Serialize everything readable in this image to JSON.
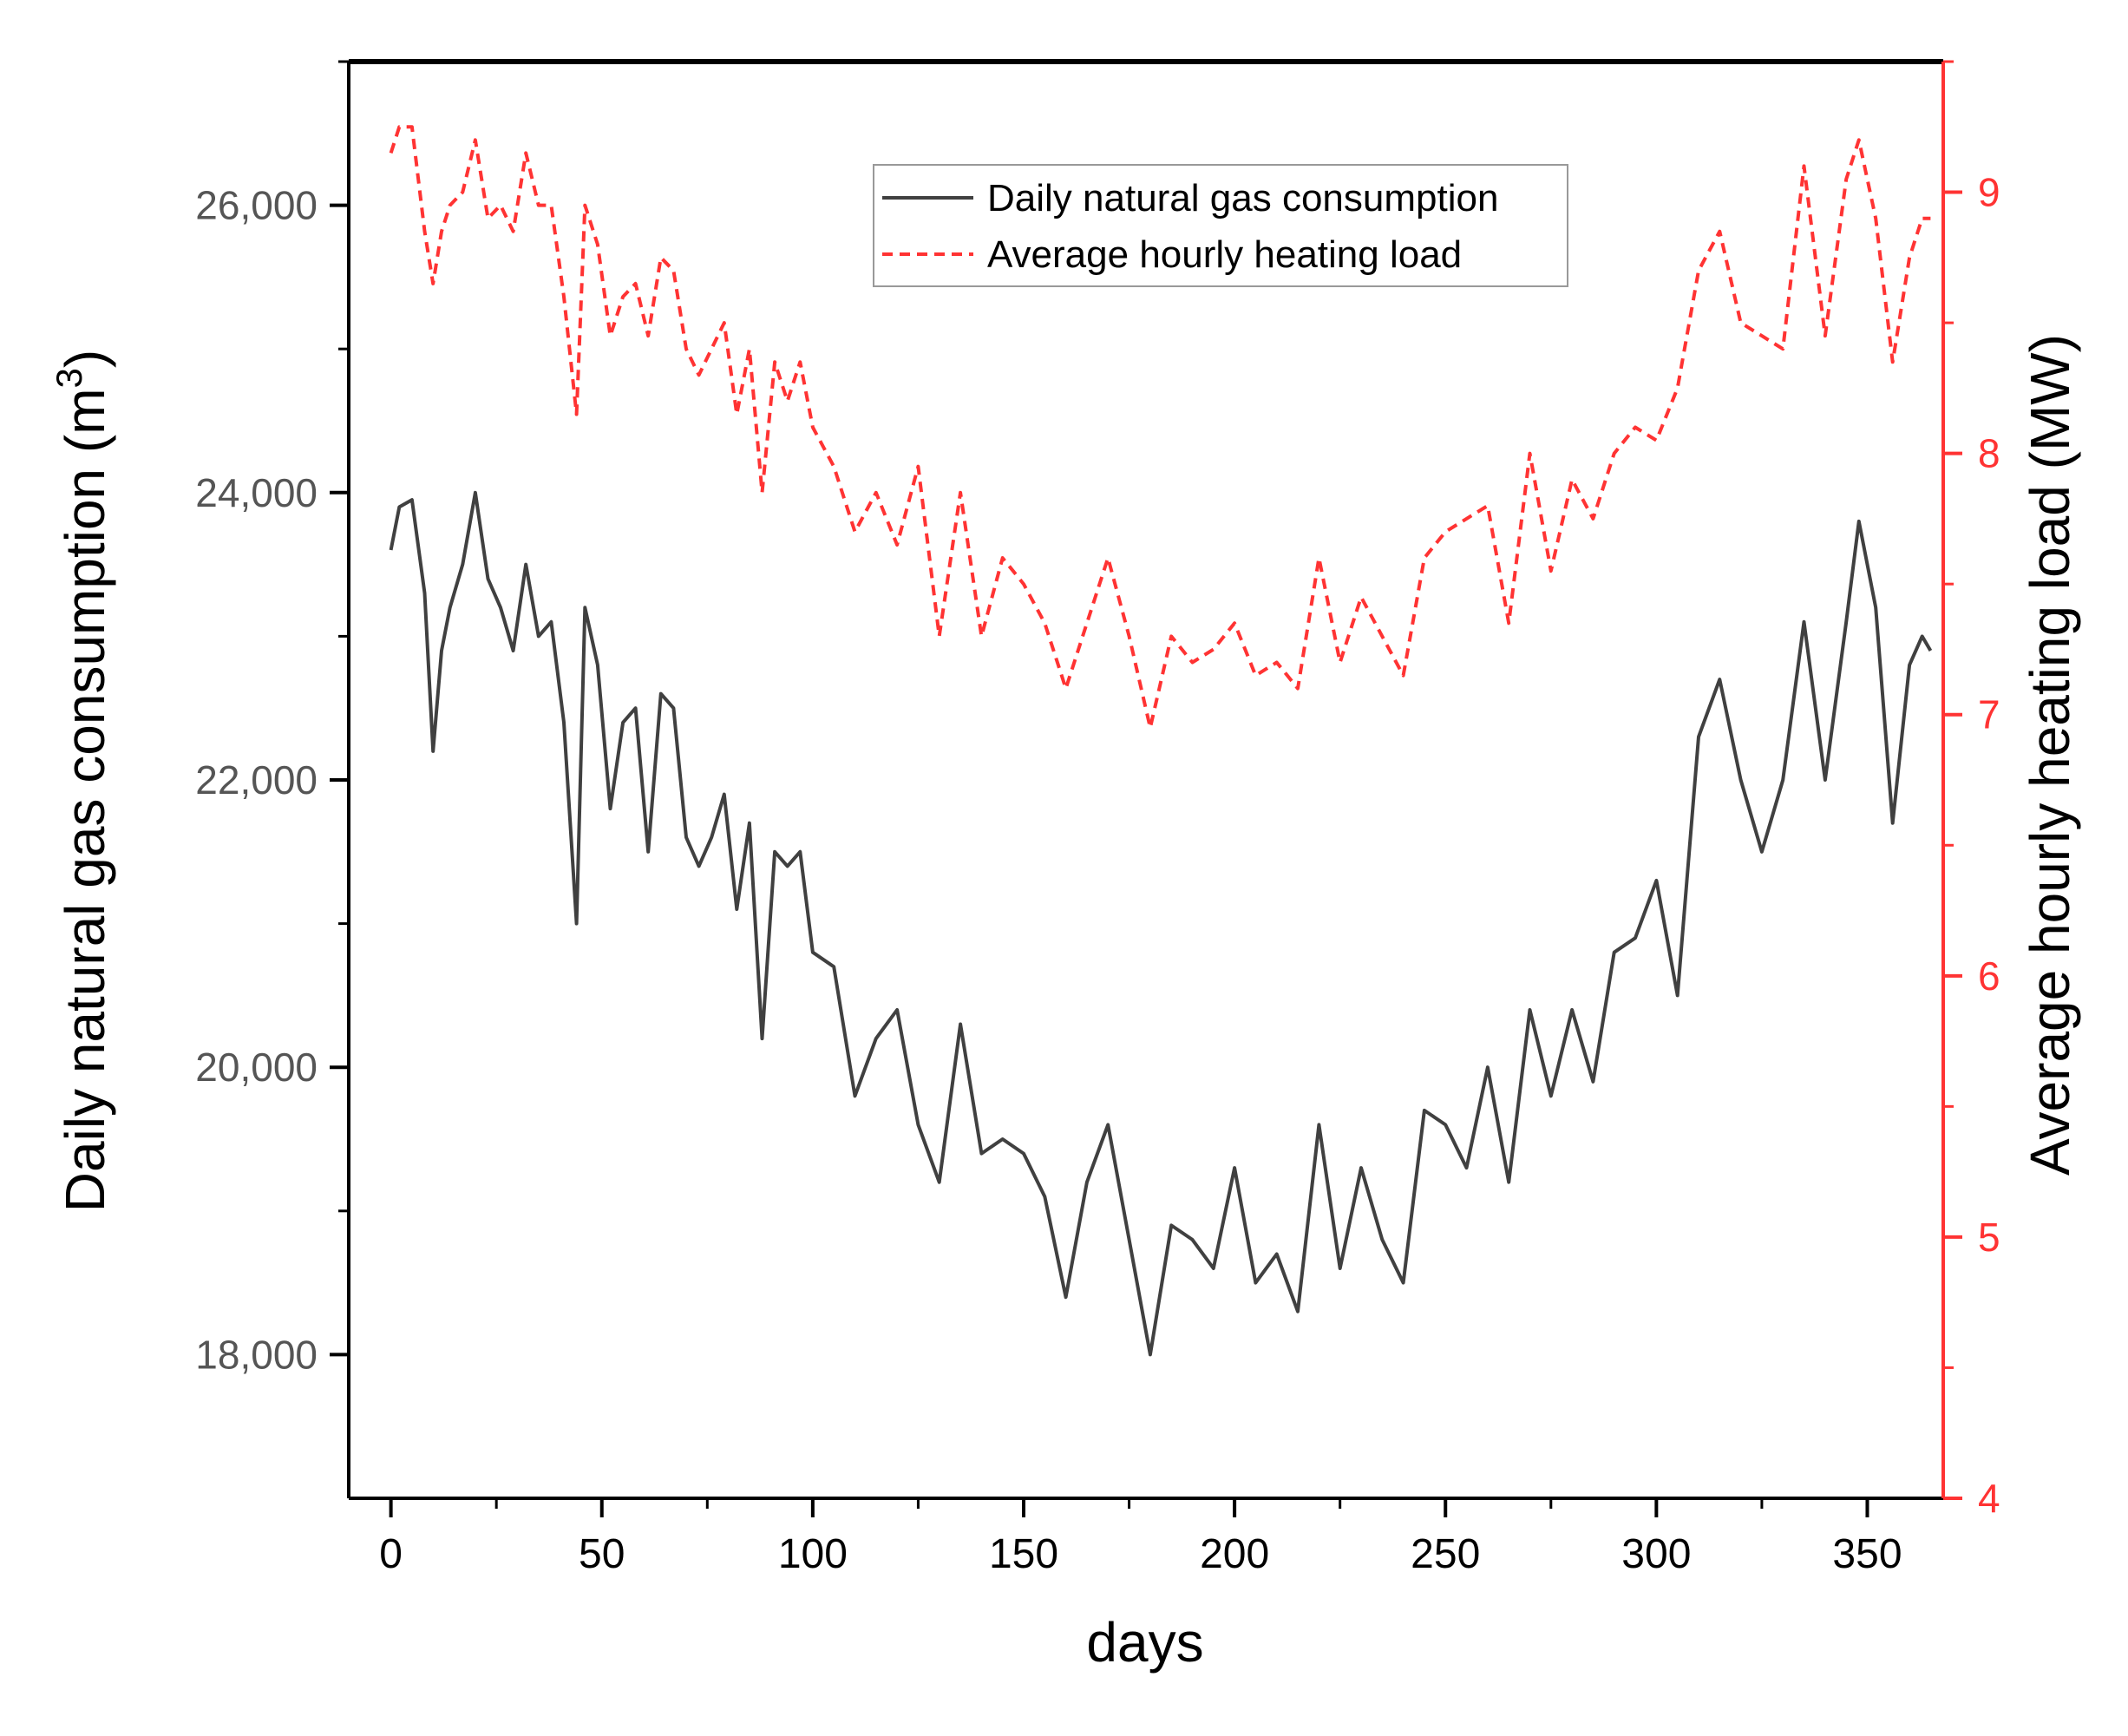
{
  "chart_data": {
    "type": "line",
    "title": "",
    "xlabel": "days",
    "ylabel_left": "Daily natural gas consumption (m3)",
    "ylabel_left_main": "Daily natural gas consumption (m",
    "ylabel_left_sup": "3",
    "ylabel_left_end": ")",
    "ylabel_right": "Average hourly heating load (MW)",
    "xlim": [
      -10,
      368
    ],
    "ylim_left": [
      17000,
      27000
    ],
    "ylim_right": [
      4,
      9.5
    ],
    "x_ticks": [
      0,
      50,
      100,
      150,
      200,
      250,
      300,
      350
    ],
    "x_tick_labels": [
      "0",
      "50",
      "100",
      "150",
      "200",
      "250",
      "300",
      "350"
    ],
    "y_left_ticks": [
      18000,
      20000,
      22000,
      24000,
      26000
    ],
    "y_left_tick_labels": [
      "18,000",
      "20,000",
      "22,000",
      "24,000",
      "26,000"
    ],
    "y_right_ticks": [
      4,
      5,
      6,
      7,
      8,
      9
    ],
    "y_right_tick_labels": [
      "4",
      "5",
      "6",
      "7",
      "8",
      "9"
    ],
    "legend_position": "top-right",
    "colors": {
      "gas": "#404040",
      "heat": "#ff3333",
      "right_axis": "#ff3333"
    },
    "series": [
      {
        "name": "Daily natural gas consumption",
        "axis": "left",
        "style": "solid",
        "x": [
          0,
          2,
          5,
          8,
          10,
          12,
          14,
          17,
          20,
          23,
          26,
          29,
          32,
          35,
          38,
          41,
          44,
          46,
          49,
          52,
          55,
          58,
          61,
          64,
          67,
          70,
          73,
          76,
          79,
          82,
          85,
          88,
          91,
          94,
          97,
          100,
          105,
          110,
          115,
          120,
          125,
          130,
          135,
          140,
          145,
          150,
          155,
          160,
          165,
          170,
          175,
          180,
          185,
          190,
          195,
          200,
          205,
          210,
          215,
          220,
          225,
          230,
          235,
          240,
          245,
          250,
          255,
          260,
          265,
          270,
          275,
          280,
          285,
          290,
          295,
          300,
          305,
          310,
          315,
          320,
          325,
          330,
          335,
          340,
          345,
          348,
          352,
          356,
          360,
          363,
          365
        ],
        "values": [
          23600,
          23900,
          23950,
          23300,
          22200,
          22900,
          23200,
          23500,
          24000,
          23400,
          23200,
          22900,
          23500,
          23000,
          23100,
          22400,
          21000,
          23200,
          22800,
          21800,
          22400,
          22500,
          21500,
          22600,
          22500,
          21600,
          21400,
          21600,
          21900,
          21100,
          21700,
          20200,
          21500,
          21400,
          21500,
          20800,
          20700,
          19800,
          20200,
          20400,
          19600,
          19200,
          20300,
          19400,
          19500,
          19400,
          19100,
          18400,
          19200,
          19600,
          18800,
          18000,
          18900,
          18800,
          18600,
          19300,
          18500,
          18700,
          18300,
          19600,
          18600,
          19300,
          18800,
          18500,
          19700,
          19600,
          19300,
          20000,
          19200,
          20400,
          19800,
          20400,
          19900,
          20800,
          20900,
          21300,
          20500,
          22300,
          22700,
          22000,
          21500,
          22000,
          23100,
          22000,
          23100,
          23800,
          23200,
          21700,
          22800,
          23000,
          22900
        ]
      },
      {
        "name": "Average hourly heating load",
        "axis": "right",
        "style": "dashed",
        "x": [
          0,
          2,
          5,
          8,
          10,
          12,
          14,
          17,
          20,
          23,
          26,
          29,
          32,
          35,
          38,
          41,
          44,
          46,
          49,
          52,
          55,
          58,
          61,
          64,
          67,
          70,
          73,
          76,
          79,
          82,
          85,
          88,
          91,
          94,
          97,
          100,
          105,
          110,
          115,
          120,
          125,
          130,
          135,
          140,
          145,
          150,
          155,
          160,
          165,
          170,
          175,
          180,
          185,
          190,
          195,
          200,
          205,
          210,
          215,
          220,
          225,
          230,
          235,
          240,
          245,
          250,
          255,
          260,
          265,
          270,
          275,
          280,
          285,
          290,
          295,
          300,
          305,
          310,
          315,
          320,
          325,
          330,
          335,
          340,
          345,
          348,
          352,
          356,
          360,
          363,
          365
        ],
        "values": [
          9.15,
          9.25,
          9.25,
          8.85,
          8.65,
          8.85,
          8.95,
          9.0,
          9.2,
          8.9,
          8.95,
          8.85,
          9.15,
          8.95,
          8.95,
          8.6,
          8.15,
          8.95,
          8.8,
          8.45,
          8.6,
          8.65,
          8.45,
          8.75,
          8.7,
          8.4,
          8.3,
          8.4,
          8.5,
          8.15,
          8.4,
          7.85,
          8.35,
          8.2,
          8.35,
          8.1,
          7.95,
          7.7,
          7.85,
          7.65,
          7.95,
          7.3,
          7.85,
          7.3,
          7.6,
          7.5,
          7.35,
          7.1,
          7.35,
          7.6,
          7.3,
          6.95,
          7.3,
          7.2,
          7.25,
          7.35,
          7.15,
          7.2,
          7.1,
          7.6,
          7.2,
          7.45,
          7.3,
          7.15,
          7.6,
          7.7,
          7.75,
          7.8,
          7.35,
          8.0,
          7.55,
          7.9,
          7.75,
          8.0,
          8.1,
          8.05,
          8.25,
          8.7,
          8.85,
          8.5,
          8.45,
          8.4,
          9.1,
          8.45,
          9.05,
          9.2,
          8.9,
          8.35,
          8.75,
          8.9,
          8.9
        ]
      }
    ]
  }
}
